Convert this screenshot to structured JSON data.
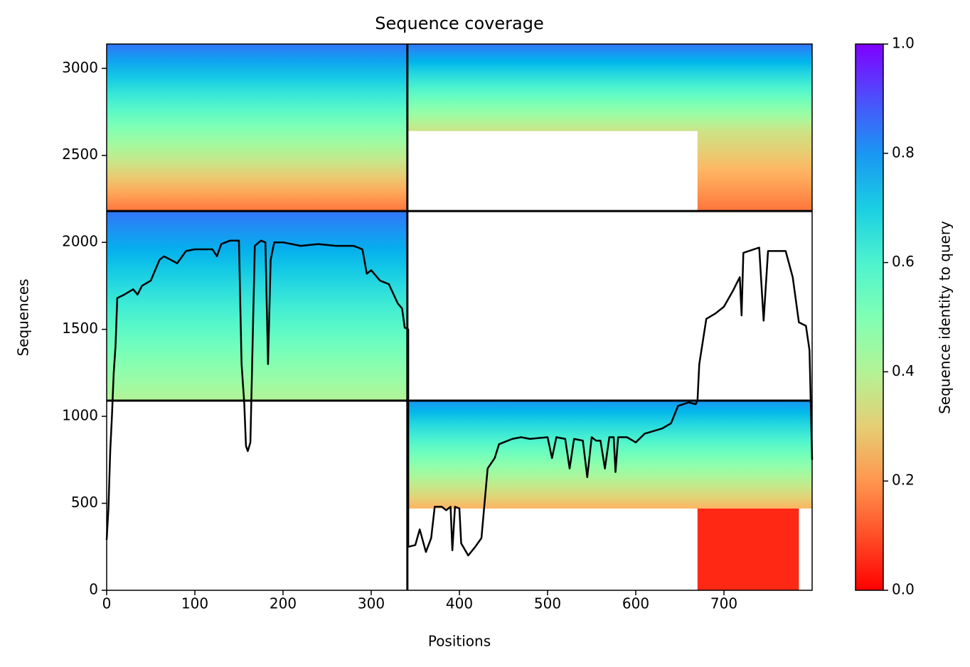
{
  "chart_data": {
    "type": "coverage",
    "title": "Sequence coverage",
    "x_label": "Positions",
    "y_label": "Sequences",
    "colorbar_label": "Sequence identity to query",
    "colormap": "rainbow_r",
    "xlim": [
      0,
      800
    ],
    "ylim": [
      0,
      3140
    ],
    "xticks": [
      0,
      100,
      200,
      300,
      400,
      500,
      600,
      700
    ],
    "yticks": [
      0,
      500,
      1000,
      1500,
      2000,
      2500,
      3000
    ],
    "clim": [
      0,
      1
    ],
    "cticks": [
      {
        "value": 0,
        "label": "0.0"
      },
      {
        "value": 0.2,
        "label": "0.2"
      },
      {
        "value": 0.4,
        "label": "0.4"
      },
      {
        "value": 0.6,
        "label": "0.6"
      },
      {
        "value": 0.8,
        "label": "0.8"
      },
      {
        "value": 1,
        "label": "1.0"
      }
    ],
    "chain_breaks_x": [
      341
    ],
    "row_breaks_y": [
      1090,
      2180
    ],
    "regions": [
      {
        "x": [
          0,
          341
        ],
        "y": [
          2180,
          3140
        ],
        "identity": [
          0.15,
          0.85
        ]
      },
      {
        "x": [
          341,
          800
        ],
        "y": [
          2640,
          3140
        ],
        "identity": [
          0.35,
          0.85
        ]
      },
      {
        "x": [
          670,
          800
        ],
        "y": [
          2180,
          2640
        ],
        "identity": [
          0.15,
          0.35
        ]
      },
      {
        "x": [
          0,
          341
        ],
        "y": [
          1090,
          2180
        ],
        "identity": [
          0.4,
          0.85
        ]
      },
      {
        "x": [
          341,
          800
        ],
        "y": [
          470,
          1090
        ],
        "identity": [
          0.25,
          0.8
        ]
      },
      {
        "x": [
          670,
          785
        ],
        "y": [
          0,
          470
        ],
        "identity": [
          0.05,
          0.05
        ]
      }
    ],
    "coverage": {
      "color": "#000000",
      "x": [
        0,
        2,
        4,
        6,
        8,
        10,
        12,
        20,
        30,
        35,
        40,
        50,
        60,
        65,
        80,
        90,
        100,
        120,
        125,
        130,
        140,
        150,
        153,
        156,
        158,
        160,
        163,
        168,
        175,
        180,
        183,
        186,
        190,
        200,
        210,
        220,
        240,
        260,
        280,
        290,
        295,
        300,
        310,
        320,
        330,
        335,
        338,
        342,
        342,
        350,
        355,
        362,
        368,
        372,
        380,
        385,
        390,
        392,
        395,
        400,
        402,
        410,
        418,
        425,
        432,
        440,
        445,
        460,
        470,
        480,
        500,
        505,
        510,
        520,
        525,
        530,
        540,
        545,
        550,
        555,
        560,
        565,
        570,
        575,
        577,
        580,
        590,
        600,
        610,
        630,
        640,
        648,
        660,
        668,
        670,
        672,
        680,
        690,
        700,
        710,
        718,
        720,
        722,
        740,
        745,
        750,
        770,
        778,
        785,
        793,
        797,
        800
      ],
      "y": [
        290,
        470,
        800,
        1000,
        1250,
        1400,
        1680,
        1700,
        1730,
        1700,
        1750,
        1780,
        1900,
        1920,
        1880,
        1950,
        1960,
        1960,
        1920,
        1990,
        2010,
        2010,
        1300,
        1080,
        830,
        800,
        850,
        1980,
        2010,
        2000,
        1300,
        1900,
        2000,
        2000,
        1990,
        1980,
        1990,
        1980,
        1980,
        1960,
        1820,
        1840,
        1780,
        1760,
        1650,
        1620,
        1510,
        1500,
        250,
        260,
        350,
        220,
        300,
        480,
        480,
        460,
        480,
        230,
        480,
        470,
        270,
        200,
        250,
        300,
        700,
        760,
        840,
        870,
        880,
        870,
        880,
        760,
        880,
        870,
        700,
        870,
        860,
        650,
        880,
        860,
        860,
        700,
        880,
        880,
        680,
        880,
        880,
        850,
        900,
        930,
        960,
        1060,
        1080,
        1070,
        1090,
        1300,
        1560,
        1590,
        1630,
        1720,
        1800,
        1580,
        1940,
        1970,
        1550,
        1950,
        1950,
        1800,
        1540,
        1520,
        1380,
        750
      ]
    }
  }
}
